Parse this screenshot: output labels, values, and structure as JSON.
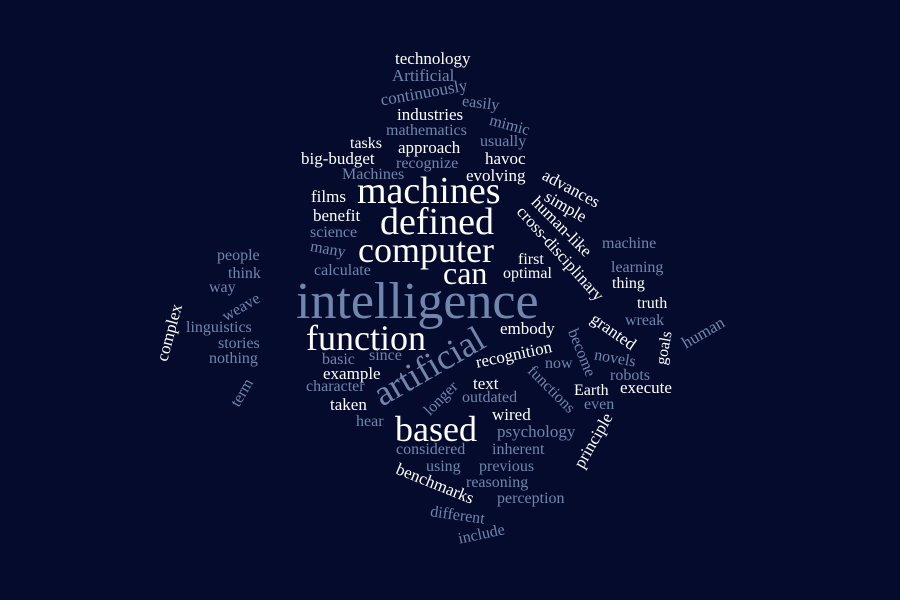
{
  "palette": {
    "background": "#050b2d",
    "primary_word": "#ffffff",
    "secondary_word": "#6f86ad",
    "tertiary_word": "#5f7399"
  },
  "words": [
    {
      "text": "technology",
      "color": "#ffffff"
    },
    {
      "text": "Artificial",
      "color": "#6f86ad"
    },
    {
      "text": "continuously",
      "color": "#6f86ad"
    },
    {
      "text": "easily",
      "color": "#6f86ad"
    },
    {
      "text": "industries",
      "color": "#ffffff"
    },
    {
      "text": "mimic",
      "color": "#6f86ad"
    },
    {
      "text": "mathematics",
      "color": "#6f86ad"
    },
    {
      "text": "usually",
      "color": "#6f86ad"
    },
    {
      "text": "tasks",
      "color": "#ffffff"
    },
    {
      "text": "approach",
      "color": "#ffffff"
    },
    {
      "text": "big-budget",
      "color": "#ffffff"
    },
    {
      "text": "recognize",
      "color": "#6f86ad"
    },
    {
      "text": "havoc",
      "color": "#ffffff"
    },
    {
      "text": "Machines",
      "color": "#6f86ad"
    },
    {
      "text": "evolving",
      "color": "#ffffff"
    },
    {
      "text": "advances",
      "color": "#ffffff"
    },
    {
      "text": "machines",
      "color": "#ffffff"
    },
    {
      "text": "films",
      "color": "#ffffff"
    },
    {
      "text": "simple",
      "color": "#ffffff"
    },
    {
      "text": "defined",
      "color": "#ffffff"
    },
    {
      "text": "benefit",
      "color": "#ffffff"
    },
    {
      "text": "human-like",
      "color": "#ffffff"
    },
    {
      "text": "science",
      "color": "#6f86ad"
    },
    {
      "text": "cross-disciplinary",
      "color": "#ffffff"
    },
    {
      "text": "computer",
      "color": "#ffffff"
    },
    {
      "text": "machine",
      "color": "#6f86ad"
    },
    {
      "text": "many",
      "color": "#6f86ad"
    },
    {
      "text": "people",
      "color": "#6f86ad"
    },
    {
      "text": "first",
      "color": "#ffffff"
    },
    {
      "text": "can",
      "color": "#ffffff"
    },
    {
      "text": "learning",
      "color": "#6f86ad"
    },
    {
      "text": "think",
      "color": "#6f86ad"
    },
    {
      "text": "calculate",
      "color": "#6f86ad"
    },
    {
      "text": "optimal",
      "color": "#ffffff"
    },
    {
      "text": "thing",
      "color": "#ffffff"
    },
    {
      "text": "way",
      "color": "#6f86ad"
    },
    {
      "text": "intelligence",
      "color": "#6f86ad"
    },
    {
      "text": "weave",
      "color": "#6f86ad"
    },
    {
      "text": "truth",
      "color": "#ffffff"
    },
    {
      "text": "complex",
      "color": "#ffffff"
    },
    {
      "text": "wreak",
      "color": "#6f86ad"
    },
    {
      "text": "human",
      "color": "#6f86ad"
    },
    {
      "text": "granted",
      "color": "#ffffff"
    },
    {
      "text": "goals",
      "color": "#ffffff"
    },
    {
      "text": "linguistics",
      "color": "#6f86ad"
    },
    {
      "text": "function",
      "color": "#ffffff"
    },
    {
      "text": "embody",
      "color": "#ffffff"
    },
    {
      "text": "stories",
      "color": "#6f86ad"
    },
    {
      "text": "artificial",
      "color": "#6f86ad"
    },
    {
      "text": "become",
      "color": "#6f86ad"
    },
    {
      "text": "nothing",
      "color": "#6f86ad"
    },
    {
      "text": "basic",
      "color": "#6f86ad"
    },
    {
      "text": "since",
      "color": "#6f86ad"
    },
    {
      "text": "recognition",
      "color": "#ffffff"
    },
    {
      "text": "novels",
      "color": "#6f86ad"
    },
    {
      "text": "now",
      "color": "#6f86ad"
    },
    {
      "text": "example",
      "color": "#ffffff"
    },
    {
      "text": "functions",
      "color": "#6f86ad"
    },
    {
      "text": "robots",
      "color": "#6f86ad"
    },
    {
      "text": "term",
      "color": "#6f86ad"
    },
    {
      "text": "character",
      "color": "#6f86ad"
    },
    {
      "text": "text",
      "color": "#ffffff"
    },
    {
      "text": "Earth",
      "color": "#ffffff"
    },
    {
      "text": "execute",
      "color": "#ffffff"
    },
    {
      "text": "longer",
      "color": "#6f86ad"
    },
    {
      "text": "taken",
      "color": "#ffffff"
    },
    {
      "text": "outdated",
      "color": "#6f86ad"
    },
    {
      "text": "even",
      "color": "#6f86ad"
    },
    {
      "text": "wired",
      "color": "#ffffff"
    },
    {
      "text": "hear",
      "color": "#6f86ad"
    },
    {
      "text": "based",
      "color": "#ffffff"
    },
    {
      "text": "psychology",
      "color": "#6f86ad"
    },
    {
      "text": "principle",
      "color": "#ffffff"
    },
    {
      "text": "considered",
      "color": "#6f86ad"
    },
    {
      "text": "inherent",
      "color": "#6f86ad"
    },
    {
      "text": "using",
      "color": "#6f86ad"
    },
    {
      "text": "previous",
      "color": "#6f86ad"
    },
    {
      "text": "benchmarks",
      "color": "#ffffff"
    },
    {
      "text": "reasoning",
      "color": "#6f86ad"
    },
    {
      "text": "perception",
      "color": "#6f86ad"
    },
    {
      "text": "different",
      "color": "#6f86ad"
    },
    {
      "text": "include",
      "color": "#6f86ad"
    }
  ]
}
